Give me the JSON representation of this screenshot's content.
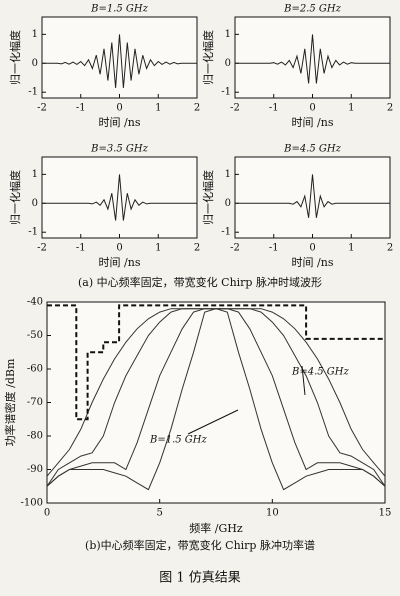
{
  "chart_data": [
    {
      "type": "line",
      "title": "B=1.5 GHz",
      "x_label": "时间 /ns",
      "y_label": "归一化幅度",
      "color": "#222222",
      "xlim": [
        -2,
        2
      ],
      "xticks": [
        -2,
        -1,
        0,
        1,
        2
      ],
      "ylim": [
        -1.2,
        1.6
      ],
      "yticks": [
        -1,
        0,
        1
      ],
      "x": [
        -2,
        -1.9,
        -1.8,
        -1.7,
        -1.6,
        -1.5,
        -1.4,
        -1.3,
        -1.2,
        -1.1,
        -1,
        -0.9,
        -0.8,
        -0.7,
        -0.6,
        -0.5,
        -0.4,
        -0.3,
        -0.2,
        -0.1,
        0,
        0.1,
        0.2,
        0.3,
        0.4,
        0.5,
        0.6,
        0.7,
        0.8,
        0.9,
        1,
        1.1,
        1.2,
        1.3,
        1.4,
        1.5,
        1.6,
        1.7,
        1.8,
        1.9,
        2
      ],
      "values": [
        0,
        0,
        0,
        0,
        0,
        -0.02,
        0.03,
        -0.03,
        0.04,
        -0.04,
        0.06,
        -0.08,
        0.12,
        -0.18,
        0.28,
        -0.38,
        0.5,
        -0.6,
        0.72,
        -0.85,
        1,
        -0.85,
        0.72,
        -0.6,
        0.5,
        -0.38,
        0.28,
        -0.18,
        0.12,
        -0.08,
        0.06,
        -0.04,
        0.04,
        -0.03,
        0.03,
        -0.02,
        0,
        0,
        0,
        0,
        0
      ]
    },
    {
      "type": "line",
      "title": "B=2.5 GHz",
      "x_label": "时间 /ns",
      "y_label": "归一化幅度",
      "color": "#222222",
      "xlim": [
        -2,
        2
      ],
      "xticks": [
        -2,
        -1,
        0,
        1,
        2
      ],
      "ylim": [
        -1.2,
        1.6
      ],
      "yticks": [
        -1,
        0,
        1
      ],
      "x": [
        -2,
        -1.9,
        -1.8,
        -1.7,
        -1.6,
        -1.5,
        -1.4,
        -1.3,
        -1.2,
        -1.1,
        -1,
        -0.9,
        -0.8,
        -0.7,
        -0.6,
        -0.5,
        -0.4,
        -0.3,
        -0.2,
        -0.1,
        0,
        0.1,
        0.2,
        0.3,
        0.4,
        0.5,
        0.6,
        0.7,
        0.8,
        0.9,
        1,
        1.1,
        1.2,
        1.3,
        1.4,
        1.5,
        1.6,
        1.7,
        1.8,
        1.9,
        2
      ],
      "values": [
        0,
        0,
        0,
        0,
        0,
        0,
        0,
        0,
        0,
        0,
        0.02,
        -0.03,
        0.04,
        -0.06,
        0.1,
        -0.15,
        0.25,
        -0.35,
        0.5,
        -0.7,
        1,
        -0.7,
        0.5,
        -0.35,
        0.25,
        -0.15,
        0.1,
        -0.06,
        0.04,
        -0.03,
        0.02,
        0,
        0,
        0,
        0,
        0,
        0,
        0,
        0,
        0,
        0
      ]
    },
    {
      "type": "line",
      "title": "B=3.5 GHz",
      "x_label": "时间 /ns",
      "y_label": "归一化幅度",
      "color": "#222222",
      "xlim": [
        -2,
        2
      ],
      "xticks": [
        -2,
        -1,
        0,
        1,
        2
      ],
      "ylim": [
        -1.2,
        1.6
      ],
      "yticks": [
        -1,
        0,
        1
      ],
      "x": [
        -2,
        -1.9,
        -1.8,
        -1.7,
        -1.6,
        -1.5,
        -1.4,
        -1.3,
        -1.2,
        -1.1,
        -1,
        -0.9,
        -0.8,
        -0.7,
        -0.6,
        -0.5,
        -0.4,
        -0.3,
        -0.2,
        -0.1,
        0,
        0.1,
        0.2,
        0.3,
        0.4,
        0.5,
        0.6,
        0.7,
        0.8,
        0.9,
        1,
        1.1,
        1.2,
        1.3,
        1.4,
        1.5,
        1.6,
        1.7,
        1.8,
        1.9,
        2
      ],
      "values": [
        0,
        0,
        0,
        0,
        0,
        0,
        0,
        0,
        0,
        0,
        0,
        0,
        0,
        -0.02,
        0.04,
        -0.07,
        0.12,
        -0.2,
        0.35,
        -0.6,
        1,
        -0.6,
        0.35,
        -0.2,
        0.12,
        -0.07,
        0.04,
        -0.02,
        0,
        0,
        0,
        0,
        0,
        0,
        0,
        0,
        0,
        0,
        0,
        0,
        0
      ]
    },
    {
      "type": "line",
      "title": "B=4.5 GHz",
      "x_label": "时间 /ns",
      "y_label": "归一化幅度",
      "color": "#222222",
      "xlim": [
        -2,
        2
      ],
      "xticks": [
        -2,
        -1,
        0,
        1,
        2
      ],
      "ylim": [
        -1.2,
        1.6
      ],
      "yticks": [
        -1,
        0,
        1
      ],
      "x": [
        -2,
        -1.9,
        -1.8,
        -1.7,
        -1.6,
        -1.5,
        -1.4,
        -1.3,
        -1.2,
        -1.1,
        -1,
        -0.9,
        -0.8,
        -0.7,
        -0.6,
        -0.5,
        -0.4,
        -0.3,
        -0.2,
        -0.1,
        0,
        0.1,
        0.2,
        0.3,
        0.4,
        0.5,
        0.6,
        0.7,
        0.8,
        0.9,
        1,
        1.1,
        1.2,
        1.3,
        1.4,
        1.5,
        1.6,
        1.7,
        1.8,
        1.9,
        2
      ],
      "values": [
        0,
        0,
        0,
        0,
        0,
        0,
        0,
        0,
        0,
        0,
        0,
        0,
        0,
        0,
        0,
        -0.03,
        0.06,
        -0.12,
        0.25,
        -0.5,
        1,
        -0.5,
        0.25,
        -0.12,
        0.06,
        -0.03,
        0,
        0,
        0,
        0,
        0,
        0,
        0,
        0,
        0,
        0,
        0,
        0,
        0,
        0,
        0
      ]
    },
    {
      "type": "line",
      "x_label": "频率 /GHz",
      "y_label": "功率谱密度 /dBm",
      "xlim": [
        0,
        15
      ],
      "xticks": [
        0,
        5,
        10,
        15
      ],
      "ylim": [
        -100,
        -40
      ],
      "yticks": [
        -100,
        -90,
        -80,
        -70,
        -60,
        -50,
        -40
      ],
      "annotations": [
        "B=4.5 GHz",
        "B=1.5 GHz"
      ],
      "x": [
        0,
        0.5,
        1,
        1.5,
        2,
        2.5,
        3,
        3.5,
        4,
        4.5,
        5,
        5.5,
        6,
        6.5,
        7,
        7.5,
        8,
        8.5,
        9,
        9.5,
        10,
        10.5,
        11,
        11.5,
        12,
        12.5,
        13,
        13.5,
        14,
        14.5,
        15
      ],
      "series": [
        {
          "color": "#333333",
          "values": [
            -95,
            -92,
            -90,
            -90,
            -90,
            -90,
            -91,
            -92,
            -94,
            -96,
            -88,
            -78,
            -66,
            -55,
            -43,
            -42,
            -43,
            -55,
            -66,
            -78,
            -88,
            -96,
            -94,
            -92,
            -91,
            -90,
            -90,
            -90,
            -90,
            -92,
            -95
          ]
        },
        {
          "color": "#333333",
          "values": [
            -95,
            -92,
            -90,
            -89,
            -88,
            -88,
            -88,
            -90,
            -82,
            -72,
            -62,
            -55,
            -48,
            -43,
            -42,
            -42,
            -42,
            -43,
            -48,
            -55,
            -62,
            -72,
            -82,
            -90,
            -88,
            -88,
            -88,
            -89,
            -90,
            -92,
            -95
          ]
        },
        {
          "color": "#333333",
          "values": [
            -95,
            -90,
            -88,
            -86,
            -85,
            -80,
            -70,
            -62,
            -56,
            -50,
            -46,
            -43,
            -42,
            -42,
            -42,
            -42,
            -42,
            -42,
            -42,
            -43,
            -46,
            -50,
            -56,
            -62,
            -70,
            -80,
            -85,
            -86,
            -88,
            -90,
            -95
          ]
        },
        {
          "color": "#333333",
          "values": [
            -92,
            -88,
            -84,
            -78,
            -70,
            -63,
            -57,
            -52,
            -48,
            -45,
            -43,
            -42,
            -42,
            -42,
            -42,
            -42,
            -42,
            -42,
            -42,
            -42,
            -43,
            -45,
            -48,
            -52,
            -57,
            -63,
            -70,
            -78,
            -84,
            -88,
            -92
          ]
        },
        {
          "color": "#111111",
          "dash": true,
          "x": [
            0,
            1.3,
            1.3,
            1.8,
            1.8,
            2.5,
            2.5,
            3.2,
            3.2,
            11.5,
            11.5,
            15
          ],
          "values": [
            -41,
            -41,
            -75,
            -75,
            -55,
            -55,
            -52,
            -52,
            -41,
            -41,
            -51,
            -51
          ]
        }
      ]
    }
  ],
  "captions": {
    "a": "(a) 中心频率固定，带宽变化 Chirp 脉冲时域波形",
    "b": "(b)中心频率固定，带宽变化 Chirp 脉冲功率谱",
    "figure": "图 1   仿真结果"
  }
}
